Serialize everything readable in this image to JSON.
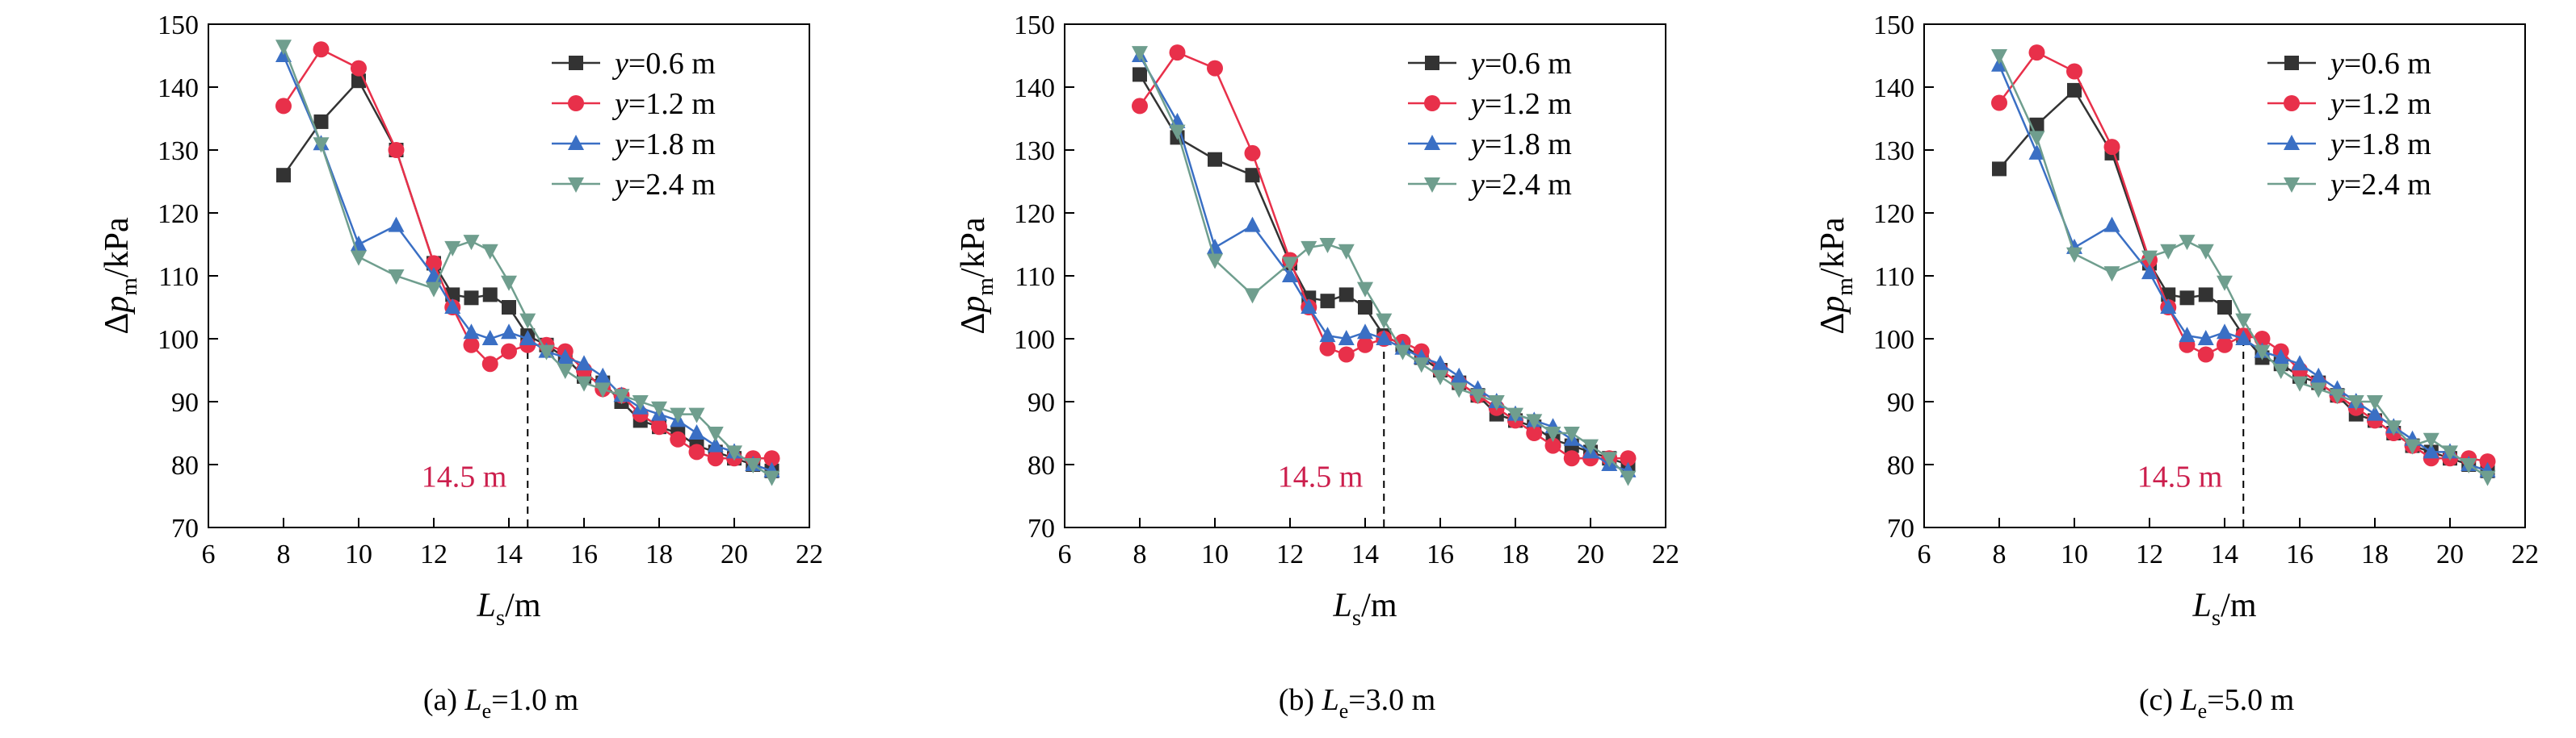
{
  "chart_data": [
    {
      "type": "line",
      "caption": {
        "prefix": "(a) ",
        "var": "L",
        "sub": "e",
        "suffix": "=1.0 m"
      },
      "xlabel": {
        "var": "L",
        "sub": "s",
        "suffix": "/m"
      },
      "ylabel": {
        "prefix": "Δ",
        "var": "p",
        "sub": "m",
        "suffix": "/kPa"
      },
      "xlim": [
        6,
        22
      ],
      "ylim": [
        70,
        150
      ],
      "xticks": [
        "6",
        "8",
        "10",
        "12",
        "14",
        "16",
        "18",
        "20",
        "22"
      ],
      "yticks": [
        "70",
        "80",
        "90",
        "100",
        "110",
        "120",
        "130",
        "140",
        "150"
      ],
      "annotation": {
        "text": "14.5 m",
        "x": 14.5
      },
      "legend": "top-right",
      "series": [
        {
          "label": {
            "var": "y",
            "suffix": "=0.6 m"
          },
          "color": "#333333",
          "marker": "square",
          "x": [
            8,
            9,
            10,
            11,
            12,
            12.5,
            13,
            13.5,
            14,
            14.5,
            15,
            15.5,
            16,
            16.5,
            17,
            17.5,
            18,
            18.5,
            19,
            19.5,
            20,
            20.5,
            21
          ],
          "y": [
            126,
            134.5,
            141,
            130,
            112,
            107,
            106.5,
            107,
            105,
            100.5,
            99,
            97,
            94,
            93,
            90,
            87,
            86,
            85,
            83,
            82,
            81,
            80,
            79
          ]
        },
        {
          "label": {
            "var": "y",
            "suffix": "=1.2 m"
          },
          "color": "#e8304a",
          "marker": "circle",
          "x": [
            8,
            9,
            10,
            11,
            12,
            12.5,
            13,
            13.5,
            14,
            14.5,
            15,
            15.5,
            16,
            16.5,
            17,
            17.5,
            18,
            18.5,
            19,
            19.5,
            20,
            20.5,
            21
          ],
          "y": [
            137,
            146,
            143,
            130,
            112,
            105,
            99,
            96,
            98,
            99,
            99,
            98,
            95,
            92,
            91,
            88,
            86,
            84,
            82,
            81,
            81,
            81,
            81
          ]
        },
        {
          "label": {
            "var": "y",
            "suffix": "=1.8 m"
          },
          "color": "#3a6fc4",
          "marker": "triangle-up",
          "x": [
            8,
            9,
            10,
            11,
            12,
            12.5,
            13,
            13.5,
            14,
            14.5,
            15,
            15.5,
            16,
            16.5,
            17,
            17.5,
            18,
            18.5,
            19,
            19.5,
            20,
            20.5,
            21
          ],
          "y": [
            145,
            131,
            115,
            118,
            110,
            105,
            101,
            100,
            101,
            100,
            98,
            97,
            96,
            94,
            91,
            89,
            88,
            87,
            85,
            83,
            82,
            80,
            79
          ]
        },
        {
          "label": {
            "var": "y",
            "suffix": "=2.4 m"
          },
          "color": "#6f9e8e",
          "marker": "triangle-down",
          "x": [
            8,
            9,
            10,
            11,
            12,
            12.5,
            13,
            13.5,
            14,
            14.5,
            15,
            15.5,
            16,
            16.5,
            17,
            17.5,
            18,
            18.5,
            19,
            19.5,
            20,
            20.5,
            21
          ],
          "y": [
            146.5,
            131,
            113,
            110,
            108,
            114.5,
            115.5,
            114,
            109,
            103,
            98,
            95,
            93,
            92,
            91,
            90,
            89,
            88,
            88,
            85,
            82,
            80,
            78
          ]
        }
      ]
    },
    {
      "type": "line",
      "caption": {
        "prefix": "(b) ",
        "var": "L",
        "sub": "e",
        "suffix": "=3.0 m"
      },
      "xlabel": {
        "var": "L",
        "sub": "s",
        "suffix": "/m"
      },
      "ylabel": {
        "prefix": "Δ",
        "var": "p",
        "sub": "m",
        "suffix": "/kPa"
      },
      "xlim": [
        6,
        22
      ],
      "ylim": [
        70,
        150
      ],
      "xticks": [
        "6",
        "8",
        "10",
        "12",
        "14",
        "16",
        "18",
        "20",
        "22"
      ],
      "yticks": [
        "70",
        "80",
        "90",
        "100",
        "110",
        "120",
        "130",
        "140",
        "150"
      ],
      "annotation": {
        "text": "14.5 m",
        "x": 14.5
      },
      "legend": "top-right",
      "series": [
        {
          "label": {
            "var": "y",
            "suffix": "=0.6 m"
          },
          "color": "#333333",
          "marker": "square",
          "x": [
            8,
            9,
            10,
            11,
            12,
            12.5,
            13,
            13.5,
            14,
            14.5,
            15,
            15.5,
            16,
            16.5,
            17,
            17.5,
            18,
            18.5,
            19,
            19.5,
            20,
            20.5,
            21
          ],
          "y": [
            142,
            132,
            128.5,
            126,
            112,
            106.5,
            106,
            107,
            105,
            100.5,
            99,
            97,
            95,
            93,
            91,
            88,
            87,
            86,
            84,
            83,
            82,
            81,
            80
          ]
        },
        {
          "label": {
            "var": "y",
            "suffix": "=1.2 m"
          },
          "color": "#e8304a",
          "marker": "circle",
          "x": [
            8,
            9,
            10,
            11,
            12,
            12.5,
            13,
            13.5,
            14,
            14.5,
            15,
            15.5,
            16,
            16.5,
            17,
            17.5,
            18,
            18.5,
            19,
            19.5,
            20,
            20.5,
            21
          ],
          "y": [
            137,
            145.5,
            143,
            129.5,
            112.5,
            105,
            98.5,
            97.5,
            99,
            100,
            99.5,
            98,
            95,
            93,
            91,
            89,
            87,
            85,
            83,
            81,
            81,
            81,
            81
          ]
        },
        {
          "label": {
            "var": "y",
            "suffix": "=1.8 m"
          },
          "color": "#3a6fc4",
          "marker": "triangle-up",
          "x": [
            8,
            9,
            10,
            11,
            12,
            12.5,
            13,
            13.5,
            14,
            14.5,
            15,
            15.5,
            16,
            16.5,
            17,
            17.5,
            18,
            18.5,
            19,
            19.5,
            20,
            20.5,
            21
          ],
          "y": [
            145,
            134.5,
            114.5,
            118,
            110,
            105,
            100.5,
            100,
            101,
            100,
            98.5,
            97,
            96,
            94,
            92,
            90,
            88,
            87,
            86,
            84,
            82,
            80,
            79
          ]
        },
        {
          "label": {
            "var": "y",
            "suffix": "=2.4 m"
          },
          "color": "#6f9e8e",
          "marker": "triangle-down",
          "x": [
            8,
            9,
            10,
            11,
            12,
            12.5,
            13,
            13.5,
            14,
            14.5,
            15,
            15.5,
            16,
            16.5,
            17,
            17.5,
            18,
            18.5,
            19,
            19.5,
            20,
            20.5,
            21
          ],
          "y": [
            145.5,
            133,
            112.5,
            107,
            112,
            114.5,
            115,
            114,
            108,
            103,
            98,
            96,
            94,
            92,
            91,
            90,
            88,
            87,
            85,
            85,
            83,
            81,
            78
          ]
        }
      ]
    },
    {
      "type": "line",
      "caption": {
        "prefix": "(c) ",
        "var": "L",
        "sub": "e",
        "suffix": "=5.0 m"
      },
      "xlabel": {
        "var": "L",
        "sub": "s",
        "suffix": "/m"
      },
      "ylabel": {
        "prefix": "Δ",
        "var": "p",
        "sub": "m",
        "suffix": "/kPa"
      },
      "xlim": [
        6,
        22
      ],
      "ylim": [
        70,
        150
      ],
      "xticks": [
        "6",
        "8",
        "10",
        "12",
        "14",
        "16",
        "18",
        "20",
        "22"
      ],
      "yticks": [
        "70",
        "80",
        "90",
        "100",
        "110",
        "120",
        "130",
        "140",
        "150"
      ],
      "annotation": {
        "text": "14.5 m",
        "x": 14.5
      },
      "legend": "top-right",
      "series": [
        {
          "label": {
            "var": "y",
            "suffix": "=0.6 m"
          },
          "color": "#333333",
          "marker": "square",
          "x": [
            8,
            9,
            10,
            11,
            12,
            12.5,
            13,
            13.5,
            14,
            14.5,
            15,
            15.5,
            16,
            16.5,
            17,
            17.5,
            18,
            18.5,
            19,
            19.5,
            20,
            20.5,
            21
          ],
          "y": [
            127,
            134,
            139.5,
            129.5,
            112,
            107,
            106.5,
            107,
            105,
            100.5,
            97,
            96,
            94,
            93,
            91,
            88,
            87,
            85,
            83,
            82,
            81,
            80,
            79
          ]
        },
        {
          "label": {
            "var": "y",
            "suffix": "=1.2 m"
          },
          "color": "#e8304a",
          "marker": "circle",
          "x": [
            8,
            9,
            10,
            11,
            12,
            12.5,
            13,
            13.5,
            14,
            14.5,
            15,
            15.5,
            16,
            16.5,
            17,
            17.5,
            18,
            18.5,
            19,
            19.5,
            20,
            20.5,
            21
          ],
          "y": [
            137.5,
            145.5,
            142.5,
            130.5,
            112.5,
            105,
            99,
            97.5,
            99,
            100.5,
            100,
            98,
            95,
            93,
            91,
            89,
            87,
            85,
            83,
            81,
            81,
            81,
            80.5
          ]
        },
        {
          "label": {
            "var": "y",
            "suffix": "=1.8 m"
          },
          "color": "#3a6fc4",
          "marker": "triangle-up",
          "x": [
            8,
            9,
            10,
            11,
            12,
            12.5,
            13,
            13.5,
            14,
            14.5,
            15,
            15.5,
            16,
            16.5,
            17,
            17.5,
            18,
            18.5,
            19,
            19.5,
            20,
            20.5,
            21
          ],
          "y": [
            143.5,
            129.5,
            114.5,
            118,
            110.5,
            105,
            100.5,
            100,
            101,
            100,
            98,
            97,
            96,
            94,
            92,
            90,
            88,
            86,
            84,
            82,
            82,
            80,
            79
          ]
        },
        {
          "label": {
            "var": "y",
            "suffix": "=2.4 m"
          },
          "color": "#6f9e8e",
          "marker": "triangle-down",
          "x": [
            8,
            9,
            10,
            11,
            12,
            12.5,
            13,
            13.5,
            14,
            14.5,
            15,
            15.5,
            16,
            16.5,
            17,
            17.5,
            18,
            18.5,
            19,
            19.5,
            20,
            20.5,
            21
          ],
          "y": [
            145,
            132,
            113.5,
            110.5,
            113,
            114,
            115.5,
            114,
            109,
            103,
            98,
            95,
            93,
            92,
            91,
            90,
            90,
            86,
            83,
            84,
            82,
            80,
            78
          ]
        }
      ]
    }
  ]
}
